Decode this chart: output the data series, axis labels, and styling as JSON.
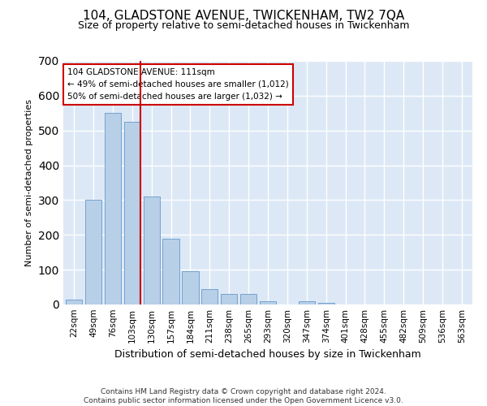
{
  "title": "104, GLADSTONE AVENUE, TWICKENHAM, TW2 7QA",
  "subtitle": "Size of property relative to semi-detached houses in Twickenham",
  "xlabel": "Distribution of semi-detached houses by size in Twickenham",
  "ylabel": "Number of semi-detached properties",
  "footer_line1": "Contains HM Land Registry data © Crown copyright and database right 2024.",
  "footer_line2": "Contains public sector information licensed under the Open Government Licence v3.0.",
  "bar_labels": [
    "22sqm",
    "49sqm",
    "76sqm",
    "103sqm",
    "130sqm",
    "157sqm",
    "184sqm",
    "211sqm",
    "238sqm",
    "265sqm",
    "293sqm",
    "320sqm",
    "347sqm",
    "374sqm",
    "401sqm",
    "428sqm",
    "455sqm",
    "482sqm",
    "509sqm",
    "536sqm",
    "563sqm"
  ],
  "bar_values": [
    15,
    300,
    550,
    525,
    310,
    190,
    95,
    45,
    30,
    30,
    10,
    0,
    10,
    5,
    0,
    0,
    0,
    0,
    0,
    0,
    0
  ],
  "bar_color": "#b8cfe8",
  "bar_edgecolor": "#6699cc",
  "property_line_x": 3,
  "annotation_text_line1": "104 GLADSTONE AVENUE: 111sqm",
  "annotation_text_line2": "← 49% of semi-detached houses are smaller (1,012)",
  "annotation_text_line3": "50% of semi-detached houses are larger (1,032) →",
  "ylim": [
    0,
    700
  ],
  "yticks": [
    0,
    100,
    200,
    300,
    400,
    500,
    600,
    700
  ],
  "bg_color": "#dce8f5",
  "grid_color": "#ffffff",
  "title_fontsize": 11,
  "subtitle_fontsize": 9,
  "ylabel_fontsize": 8,
  "xlabel_fontsize": 9,
  "annotation_box_facecolor": "#ffffff",
  "annotation_box_edgecolor": "#cc0000",
  "red_line_color": "#cc0000",
  "footer_fontsize": 6.5
}
